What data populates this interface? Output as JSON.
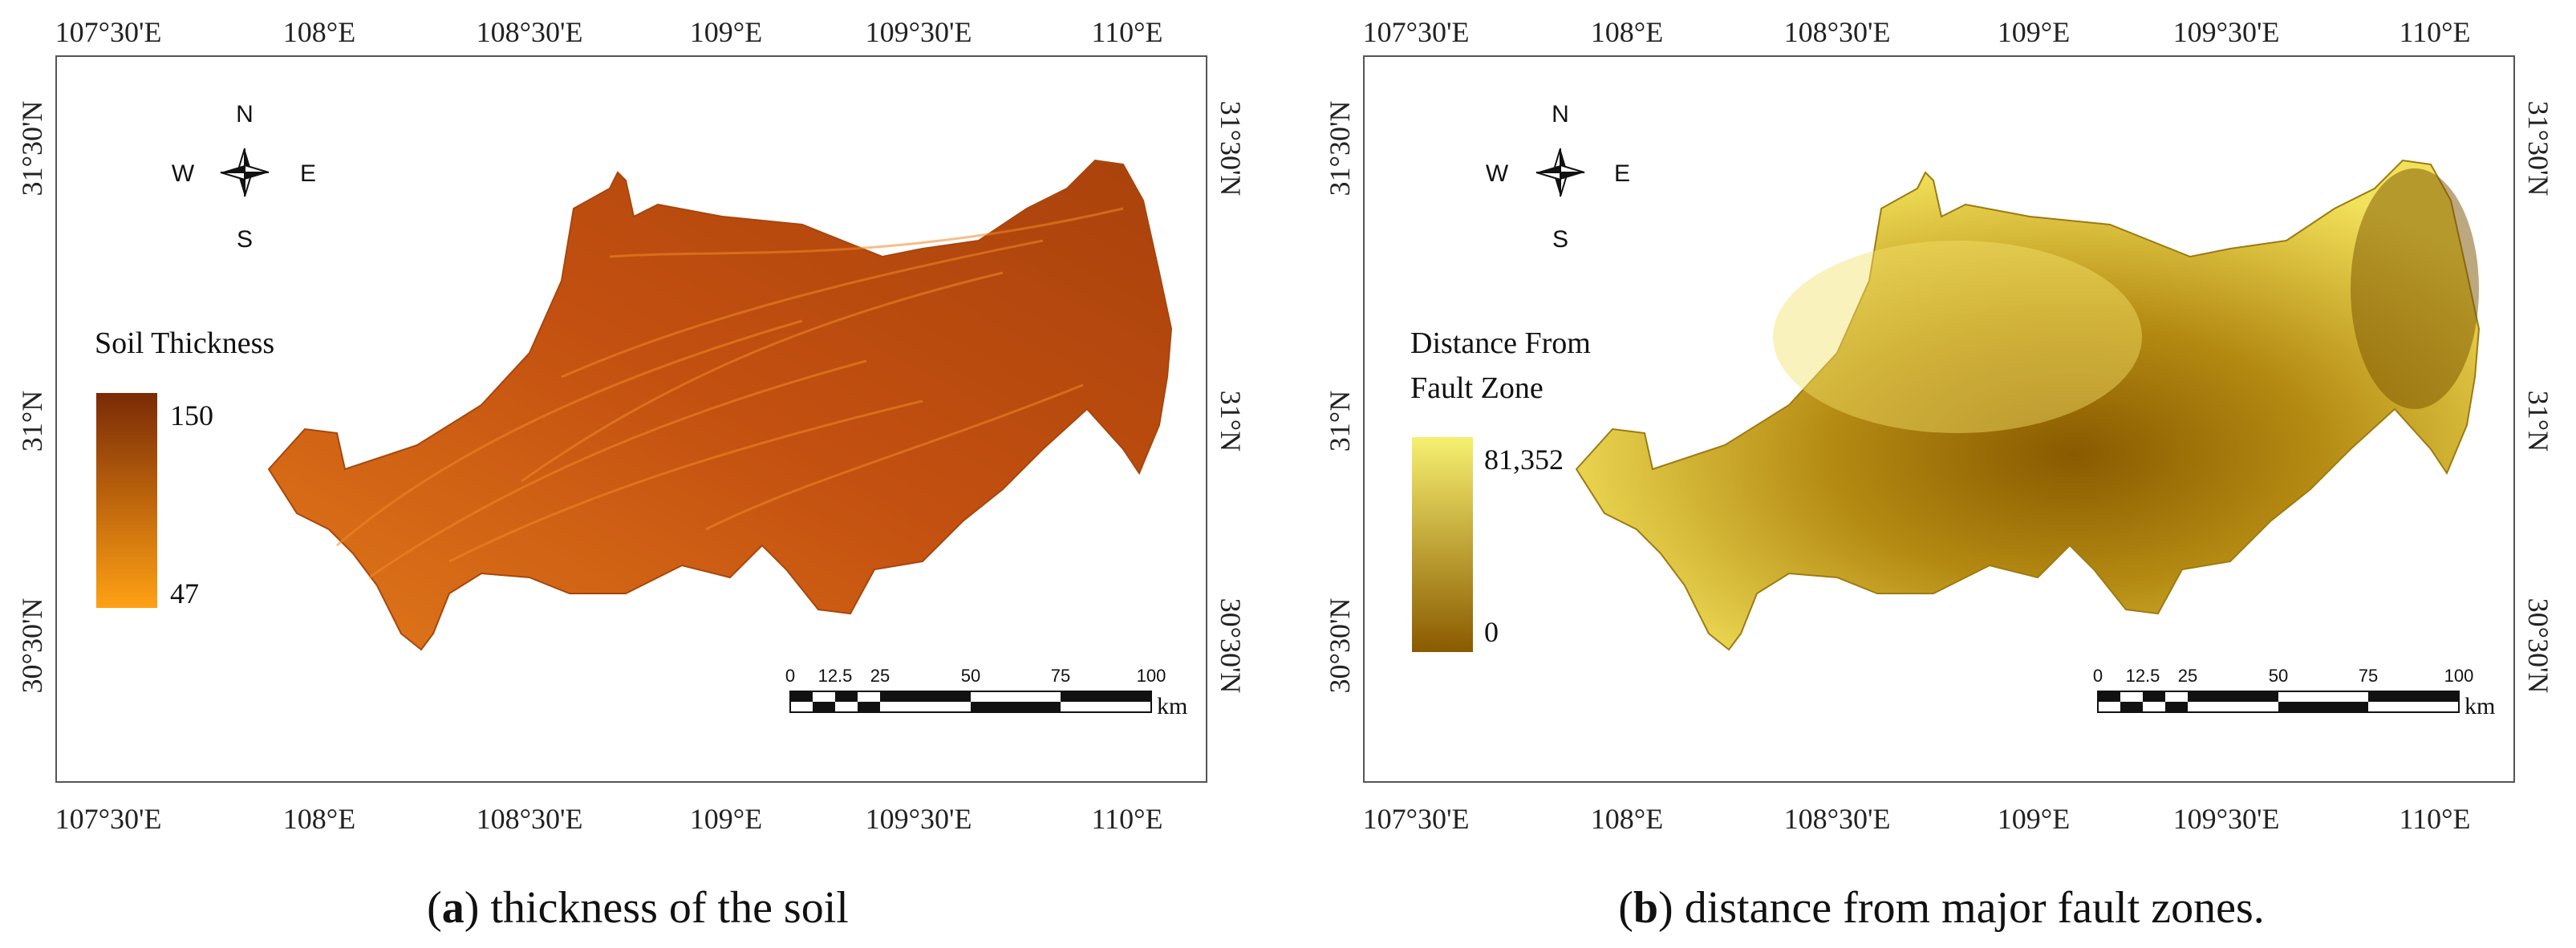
{
  "ticks": {
    "lon": [
      "107°30'E",
      "108°E",
      "108°30'E",
      "109°E",
      "109°30'E",
      "110°E"
    ],
    "lat": [
      "31°30'N",
      "31°N",
      "30°30'N"
    ]
  },
  "compass": {
    "n": "N",
    "s": "S",
    "e": "E",
    "w": "W"
  },
  "scalebar": {
    "labels": [
      "0",
      "12.5",
      "25",
      "50",
      "75",
      "100"
    ],
    "unit": "km"
  },
  "panels": [
    {
      "id": "a",
      "legend": {
        "title": [
          "Soil Thickness"
        ],
        "max": "150",
        "min": "47",
        "color_max": "#7a2a06",
        "color_min": "#ffa114"
      },
      "map_fill": "#c9570e",
      "caption": {
        "letter": "a",
        "text": "thickness of the soil"
      }
    },
    {
      "id": "b",
      "legend": {
        "title": [
          "Distance From",
          "Fault Zone"
        ],
        "max": "81,352",
        "min": "0",
        "color_max": "#f6f070",
        "color_min": "#8a5a00"
      },
      "map_fill": "#c19a1a",
      "caption": {
        "letter": "b",
        "text": "distance from major fault zones."
      }
    }
  ]
}
